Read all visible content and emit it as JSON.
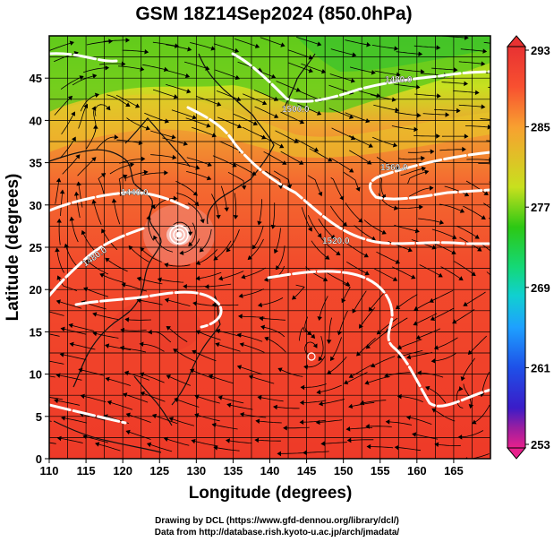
{
  "title": "GSM 18Z14Sep2024 (850.0hPa)",
  "map": {
    "x_axis": {
      "label": "Longitude (degrees)",
      "range": [
        110,
        170
      ],
      "ticks": [
        "110",
        "115",
        "120",
        "125",
        "130",
        "135",
        "140",
        "145",
        "150",
        "155",
        "160",
        "165"
      ]
    },
    "y_axis": {
      "label": "Latitude  (degrees)",
      "range": [
        0,
        50
      ],
      "ticks": [
        "0",
        "5",
        "10",
        "15",
        "20",
        "25",
        "30",
        "35",
        "40",
        "45"
      ]
    },
    "grid": true,
    "contour_labels": [
      "1440.0",
      "1480.0",
      "1500.0",
      "1520.0",
      "1560.0",
      "1480.0"
    ],
    "colorbar": {
      "range": [
        253,
        293
      ],
      "ticks": [
        "293",
        "285",
        "277",
        "269",
        "261",
        "253"
      ],
      "colors": [
        "#e8208c",
        "#9a1ea0",
        "#3a1cc8",
        "#1e50e8",
        "#1ea0ff",
        "#10d0d0",
        "#14d878",
        "#2cc814",
        "#80d010",
        "#c8e01e",
        "#f0c828",
        "#f8a030",
        "#f87830",
        "#f85030",
        "#f03228",
        "#e83232"
      ]
    }
  },
  "credits": {
    "line1": "Drawing by DCL (https://www.gfd-dennou.org/library/dcl/)",
    "line2": "Data from http://database.rish.kyoto-u.ac.jp/arch/jmadata/"
  }
}
